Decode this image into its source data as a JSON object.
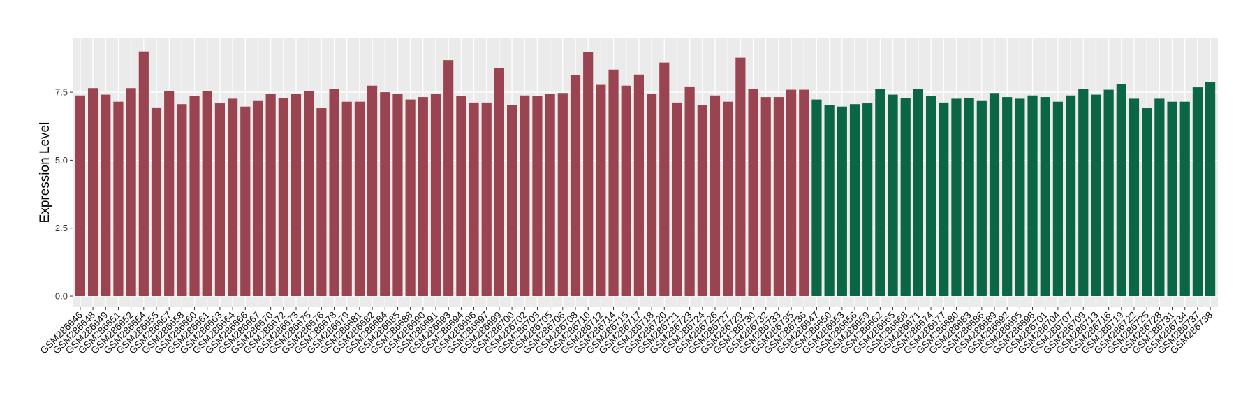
{
  "chart_data": {
    "type": "bar",
    "y_label": "Expression Level",
    "ylim": [
      -0.41,
      9.48
    ],
    "yticks": [
      {
        "value": 0,
        "label": "0.0"
      },
      {
        "value": 2.5,
        "label": "2.5"
      },
      {
        "value": 5,
        "label": "5.0"
      },
      {
        "value": 7.5,
        "label": "7.5"
      }
    ],
    "grid": true,
    "bar_groups": [
      {
        "color": "#9b4451",
        "categories": [
          "GSM286646",
          "GSM286648",
          "GSM286649",
          "GSM286651",
          "GSM286652",
          "GSM286654",
          "GSM286655",
          "GSM286657",
          "GSM286658",
          "GSM286660",
          "GSM286661",
          "GSM286663",
          "GSM286664",
          "GSM286666",
          "GSM286667",
          "GSM286670",
          "GSM286672",
          "GSM286673",
          "GSM286675",
          "GSM286676",
          "GSM286678",
          "GSM286679",
          "GSM286681",
          "GSM286682",
          "GSM286684",
          "GSM286685",
          "GSM286688",
          "GSM286690",
          "GSM286691",
          "GSM286693",
          "GSM286694",
          "GSM286696",
          "GSM286697",
          "GSM286699",
          "GSM286700",
          "GSM286702",
          "GSM286703",
          "GSM286705",
          "GSM286706",
          "GSM286708",
          "GSM286710",
          "GSM286712",
          "GSM286714",
          "GSM286715",
          "GSM286717",
          "GSM286718",
          "GSM286720",
          "GSM286721",
          "GSM286723",
          "GSM286724",
          "GSM286726",
          "GSM286727",
          "GSM286729",
          "GSM286730",
          "GSM286732",
          "GSM286733",
          "GSM286735",
          "GSM286736"
        ],
        "values": [
          7.38,
          7.65,
          7.41,
          7.15,
          7.65,
          9.0,
          6.94,
          7.53,
          7.06,
          7.35,
          7.53,
          7.09,
          7.26,
          6.97,
          7.2,
          7.44,
          7.29,
          7.44,
          7.53,
          6.91,
          7.62,
          7.15,
          7.15,
          7.74,
          7.5,
          7.44,
          7.23,
          7.32,
          7.44,
          8.68,
          7.35,
          7.12,
          7.12,
          8.38,
          7.03,
          7.38,
          7.35,
          7.44,
          7.47,
          8.12,
          8.97,
          7.77,
          8.33,
          7.74,
          8.15,
          7.44,
          8.59,
          7.12,
          7.71,
          7.03,
          7.38,
          7.15,
          8.77,
          7.62,
          7.32,
          7.32,
          7.59,
          7.59
        ]
      },
      {
        "color": "#0a6644",
        "categories": [
          "GSM286647",
          "GSM286650",
          "GSM286653",
          "GSM286656",
          "GSM286659",
          "GSM286662",
          "GSM286665",
          "GSM286668",
          "GSM286671",
          "GSM286674",
          "GSM286677",
          "GSM286680",
          "GSM286683",
          "GSM286686",
          "GSM286689",
          "GSM286692",
          "GSM286695",
          "GSM286698",
          "GSM286701",
          "GSM286704",
          "GSM286707",
          "GSM286709",
          "GSM286713",
          "GSM286716",
          "GSM286719",
          "GSM286722",
          "GSM286725",
          "GSM286728",
          "GSM286731",
          "GSM286734",
          "GSM286737",
          "GSM286738"
        ],
        "values": [
          7.23,
          7.03,
          6.97,
          7.06,
          7.09,
          7.62,
          7.41,
          7.29,
          7.62,
          7.35,
          7.12,
          7.26,
          7.29,
          7.2,
          7.47,
          7.32,
          7.26,
          7.38,
          7.32,
          7.15,
          7.38,
          7.62,
          7.41,
          7.59,
          7.8,
          7.26,
          6.91,
          7.26,
          7.15,
          7.15,
          7.68,
          7.88
        ]
      }
    ]
  }
}
